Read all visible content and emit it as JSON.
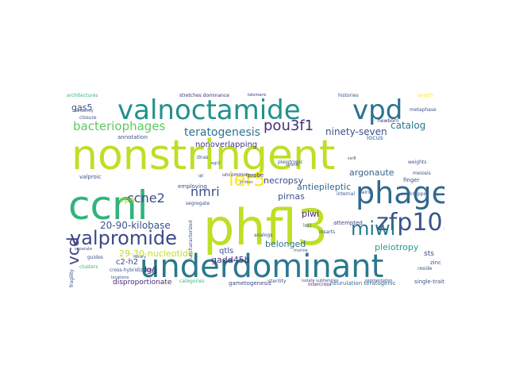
{
  "cloud": {
    "words": [
      {
        "key": "nonstringent",
        "text": "nonstringent",
        "color": "#bddf26"
      },
      {
        "key": "phfl3",
        "text": "phfl3",
        "color": "#bddf26"
      },
      {
        "key": "ccnl",
        "text": "ccnl",
        "color": "#2fb47c"
      },
      {
        "key": "underdominant",
        "text": "underdominant",
        "color": "#2a788e"
      },
      {
        "key": "valnoctamide",
        "text": "valnoctamide",
        "color": "#21918c"
      },
      {
        "key": "vpd",
        "text": "vpd",
        "color": "#2c728e"
      },
      {
        "key": "phage",
        "text": "phage",
        "color": "#31688e"
      },
      {
        "key": "zfp105",
        "text": "zfp105",
        "color": "#3b528b"
      },
      {
        "key": "valpromide",
        "text": "valpromide",
        "color": "#3e4989"
      },
      {
        "key": "miwi",
        "text": "miwi",
        "color": "#2a788e"
      },
      {
        "key": "ier5",
        "text": "ier5",
        "color": "#fde725"
      },
      {
        "key": "bacteriophages",
        "text": "bacteriophages",
        "color": "#5ec962"
      },
      {
        "key": "vcd",
        "text": "vcd",
        "color": "#404387"
      },
      {
        "key": "pou3f1",
        "text": "pou3f1",
        "color": "#472d7b"
      },
      {
        "key": "ccne2",
        "text": "ccne2",
        "color": "#3e4c8a"
      },
      {
        "key": "nmri",
        "text": "nmri",
        "color": "#3b528b"
      },
      {
        "key": "teratogenesis",
        "text": "teratogenesis",
        "color": "#2c728e"
      },
      {
        "key": "ninety_seven",
        "text": "ninety-seven",
        "color": "#3b528b"
      },
      {
        "key": "catalog",
        "text": "catalog",
        "color": "#2a788e"
      },
      {
        "key": "gas5",
        "text": "gas5",
        "color": "#3e4a89"
      },
      {
        "key": "kb",
        "text": "20-90-kilobase",
        "color": "#3b528b"
      },
      {
        "key": "nt",
        "text": "29-30-nucleotide",
        "color": "#bddf26"
      },
      {
        "key": "gadd45b",
        "text": "gadd45b",
        "color": "#46327e"
      },
      {
        "key": "argonaute",
        "text": "argonaute",
        "color": "#34618d"
      },
      {
        "key": "pleiotropy",
        "text": "pleiotropy",
        "color": "#1fa088"
      },
      {
        "key": "necropsy",
        "text": "necropsy",
        "color": "#3e4989"
      },
      {
        "key": "antiepileptic",
        "text": "antiepileptic",
        "color": "#31688e"
      },
      {
        "key": "nonoverlapping",
        "text": "nonoverlapping",
        "color": "#453781"
      },
      {
        "key": "pirnas",
        "text": "pirnas",
        "color": "#3b528b"
      },
      {
        "key": "belonged",
        "text": "belonged",
        "color": "#2c728e"
      },
      {
        "key": "qtls",
        "text": "qtls",
        "color": "#3b528b"
      },
      {
        "key": "piwi",
        "text": "piwi",
        "color": "#472a7a"
      },
      {
        "key": "vpa",
        "text": "vpa",
        "color": "#bddf26"
      },
      {
        "key": "c2h2",
        "text": "c2-h2",
        "color": "#3e4989"
      },
      {
        "key": "lgj",
        "text": "lg/j",
        "color": "#440154"
      },
      {
        "key": "dispro",
        "text": "disproportionate",
        "color": "#482878"
      },
      {
        "key": "gameto",
        "text": "gametogenesis",
        "color": "#3e4989"
      },
      {
        "key": "neurulation",
        "text": "neurulation teratogenic",
        "color": "#31688e"
      },
      {
        "key": "singletrait",
        "text": "single-trait",
        "color": "#3b528b"
      },
      {
        "key": "sts",
        "text": "sts",
        "color": "#3e4989"
      },
      {
        "key": "zinc",
        "text": "zinc",
        "color": "#3b528b"
      },
      {
        "key": "architectures",
        "text": "architectures",
        "color": "#35b779"
      },
      {
        "key": "stretches",
        "text": "stretches dominance",
        "color": "#482878"
      },
      {
        "key": "telomeric",
        "text": "telomeric",
        "color": "#472d7b"
      },
      {
        "key": "histories",
        "text": "histories",
        "color": "#3b528b"
      },
      {
        "key": "length",
        "text": "length",
        "color": "#fde725"
      },
      {
        "key": "metaphase",
        "text": "metaphase",
        "color": "#3b528b"
      },
      {
        "key": "newborn",
        "text": "newborn",
        "color": "#472d7b"
      },
      {
        "key": "locus",
        "text": "locus",
        "color": "#31688e"
      },
      {
        "key": "annotation",
        "text": "annotation",
        "color": "#3b528b"
      },
      {
        "key": "valproic",
        "text": "valproic",
        "color": "#3b528b"
      },
      {
        "key": "uncommon",
        "text": "uncommon",
        "color": "#482878"
      },
      {
        "key": "probe",
        "text": "probe",
        "color": "#3e4989"
      },
      {
        "key": "employing",
        "text": "employing",
        "color": "#3b528b"
      },
      {
        "key": "segregate",
        "text": "segregate",
        "color": "#3b528b"
      },
      {
        "key": "analogs",
        "text": "analogs",
        "color": "#3b528b"
      },
      {
        "key": "attempted",
        "text": "attempted",
        "color": "#3e4989"
      },
      {
        "key": "finger",
        "text": "finger",
        "color": "#3e4989"
      },
      {
        "key": "kruppel",
        "text": "kruppel",
        "color": "#3b528b"
      },
      {
        "key": "pairs",
        "text": "pairs",
        "color": "#3b528b"
      },
      {
        "key": "internal",
        "text": "internal",
        "color": "#3b528b"
      },
      {
        "key": "intercross",
        "text": "intercross",
        "color": "#482878"
      },
      {
        "key": "categories",
        "text": "categories",
        "color": "#35b779"
      },
      {
        "key": "sterility",
        "text": "sterility",
        "color": "#3b528b"
      },
      {
        "key": "fragility",
        "text": "fragility",
        "color": "#3b528b"
      },
      {
        "key": "guides",
        "text": "guides",
        "color": "#3b528b"
      },
      {
        "key": "tandemly",
        "text": "tandemly",
        "color": "#3b528b"
      },
      {
        "key": "closure",
        "text": "closure",
        "color": "#3b528b"
      },
      {
        "key": "strand",
        "text": "strand",
        "color": "#3b528b"
      },
      {
        "key": "murine",
        "text": "murine",
        "color": "#3b528b"
      },
      {
        "key": "isolate",
        "text": "isolate subfamilies",
        "color": "#3b528b"
      },
      {
        "key": "meiosis",
        "text": "meiosis",
        "color": "#3b528b"
      },
      {
        "key": "insarts",
        "text": "insarts",
        "color": "#3b528b"
      },
      {
        "key": "loci",
        "text": "loci",
        "color": "#3b528b"
      },
      {
        "key": "dnas",
        "text": "dnas",
        "color": "#3b528b"
      },
      {
        "key": "egr2",
        "text": "egr2",
        "color": "#3b528b"
      },
      {
        "key": "qtl",
        "text": "qtl",
        "color": "#3b528b"
      },
      {
        "key": "ssr8",
        "text": "ssr8",
        "color": "#3b528b"
      },
      {
        "key": "locations",
        "text": "locations",
        "color": "#3b528b"
      },
      {
        "key": "clusters",
        "text": "clusters",
        "color": "#35b779"
      },
      {
        "key": "separate",
        "text": "separate",
        "color": "#3b528b"
      },
      {
        "key": "reside",
        "text": "reside",
        "color": "#3b528b"
      },
      {
        "key": "segmentation",
        "text": "segmentation",
        "color": "#3b528b"
      },
      {
        "key": "weights",
        "text": "weights",
        "color": "#3b528b"
      },
      {
        "key": "cross",
        "text": "cross-hybridization",
        "color": "#3b528b"
      },
      {
        "key": "primer",
        "text": "primer",
        "color": "#3b528b"
      },
      {
        "key": "library",
        "text": "library",
        "color": "#3b528b"
      },
      {
        "key": "pleiotropic",
        "text": "pleiotropic",
        "color": "#3b528b"
      },
      {
        "key": "characterized",
        "text": "uncharacterized",
        "color": "#3b528b"
      }
    ]
  }
}
